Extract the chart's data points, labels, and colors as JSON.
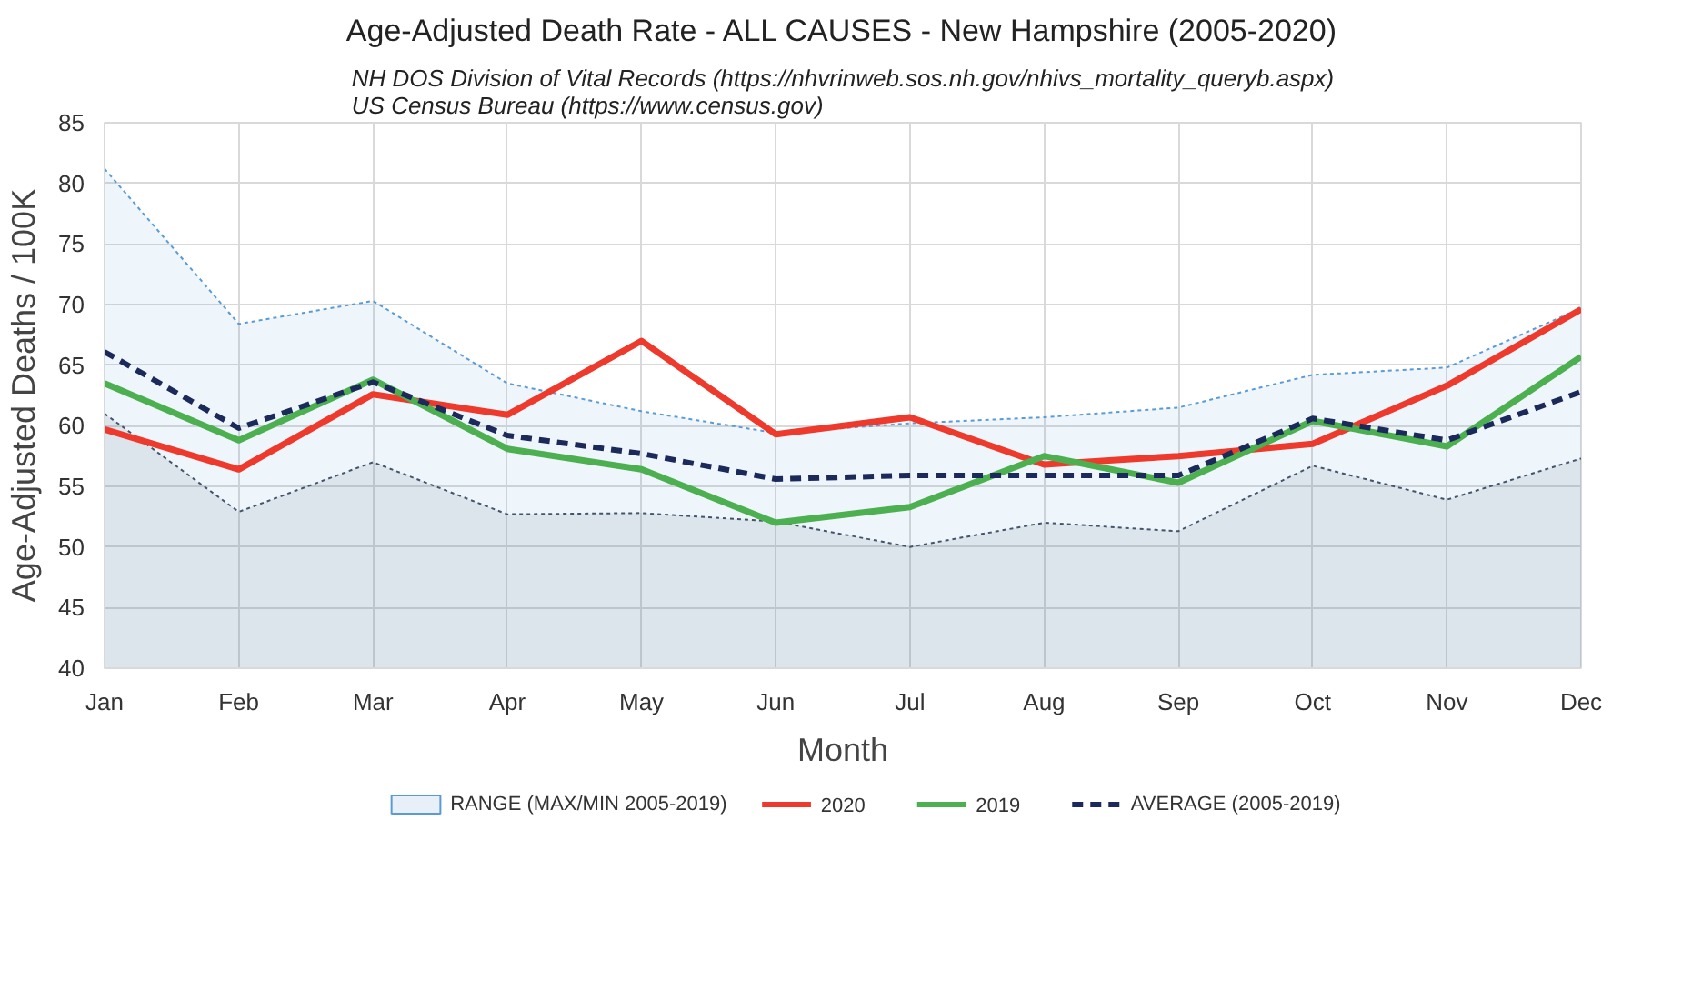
{
  "chart_data": {
    "type": "line",
    "title": "Age-Adjusted Death Rate - ALL CAUSES - New Hampshire (2005-2020)",
    "subtitle": "NH DOS Division of Vital Records (https://nhvrinweb.sos.nh.gov/nhivs_mortality_queryb.aspx)\nUS Census Bureau (https://www.census.gov)",
    "xlabel": "Month",
    "ylabel": "Age-Adjusted Deaths / 100K",
    "categories": [
      "Jan",
      "Feb",
      "Mar",
      "Apr",
      "May",
      "Jun",
      "Jul",
      "Aug",
      "Sep",
      "Oct",
      "Nov",
      "Dec"
    ],
    "ylim": [
      40,
      85
    ],
    "yticks": [
      40,
      45,
      50,
      55,
      60,
      65,
      70,
      75,
      80,
      85
    ],
    "grid": true,
    "legend": "bottom",
    "series": [
      {
        "type": "area",
        "name": "RANGE (MAX/MIN 2005-2019)",
        "color": "#5b9bd5",
        "line_style": "dotted",
        "values": [
          81.2,
          68.4,
          70.3,
          63.5,
          61.2,
          59.4,
          60.2,
          60.7,
          61.5,
          64.2,
          64.8,
          69.7
        ]
      },
      {
        "type": "area",
        "color": "#44546a",
        "line_style": "dotted",
        "values": [
          61.0,
          52.9,
          57.0,
          52.7,
          52.8,
          52.1,
          50.0,
          52.0,
          51.3,
          56.7,
          53.9,
          57.3
        ]
      },
      {
        "name": "2020",
        "color": "#ee3a2c",
        "line_style": "solid",
        "values": [
          59.7,
          56.4,
          62.6,
          60.9,
          67.0,
          59.3,
          60.7,
          56.8,
          57.5,
          58.5,
          63.3,
          69.6
        ]
      },
      {
        "name": "2019",
        "color": "#4caf50",
        "line_style": "solid",
        "values": [
          63.5,
          58.8,
          63.8,
          58.1,
          56.4,
          52.0,
          53.3,
          57.5,
          55.3,
          60.4,
          58.3,
          65.7
        ]
      },
      {
        "name": "AVERAGE (2005-2019)",
        "color": "#1b2a5a",
        "line_style": "dashed",
        "values": [
          66.1,
          59.8,
          63.6,
          59.2,
          57.7,
          55.6,
          55.9,
          55.9,
          55.9,
          60.6,
          58.8,
          62.8
        ]
      }
    ]
  }
}
